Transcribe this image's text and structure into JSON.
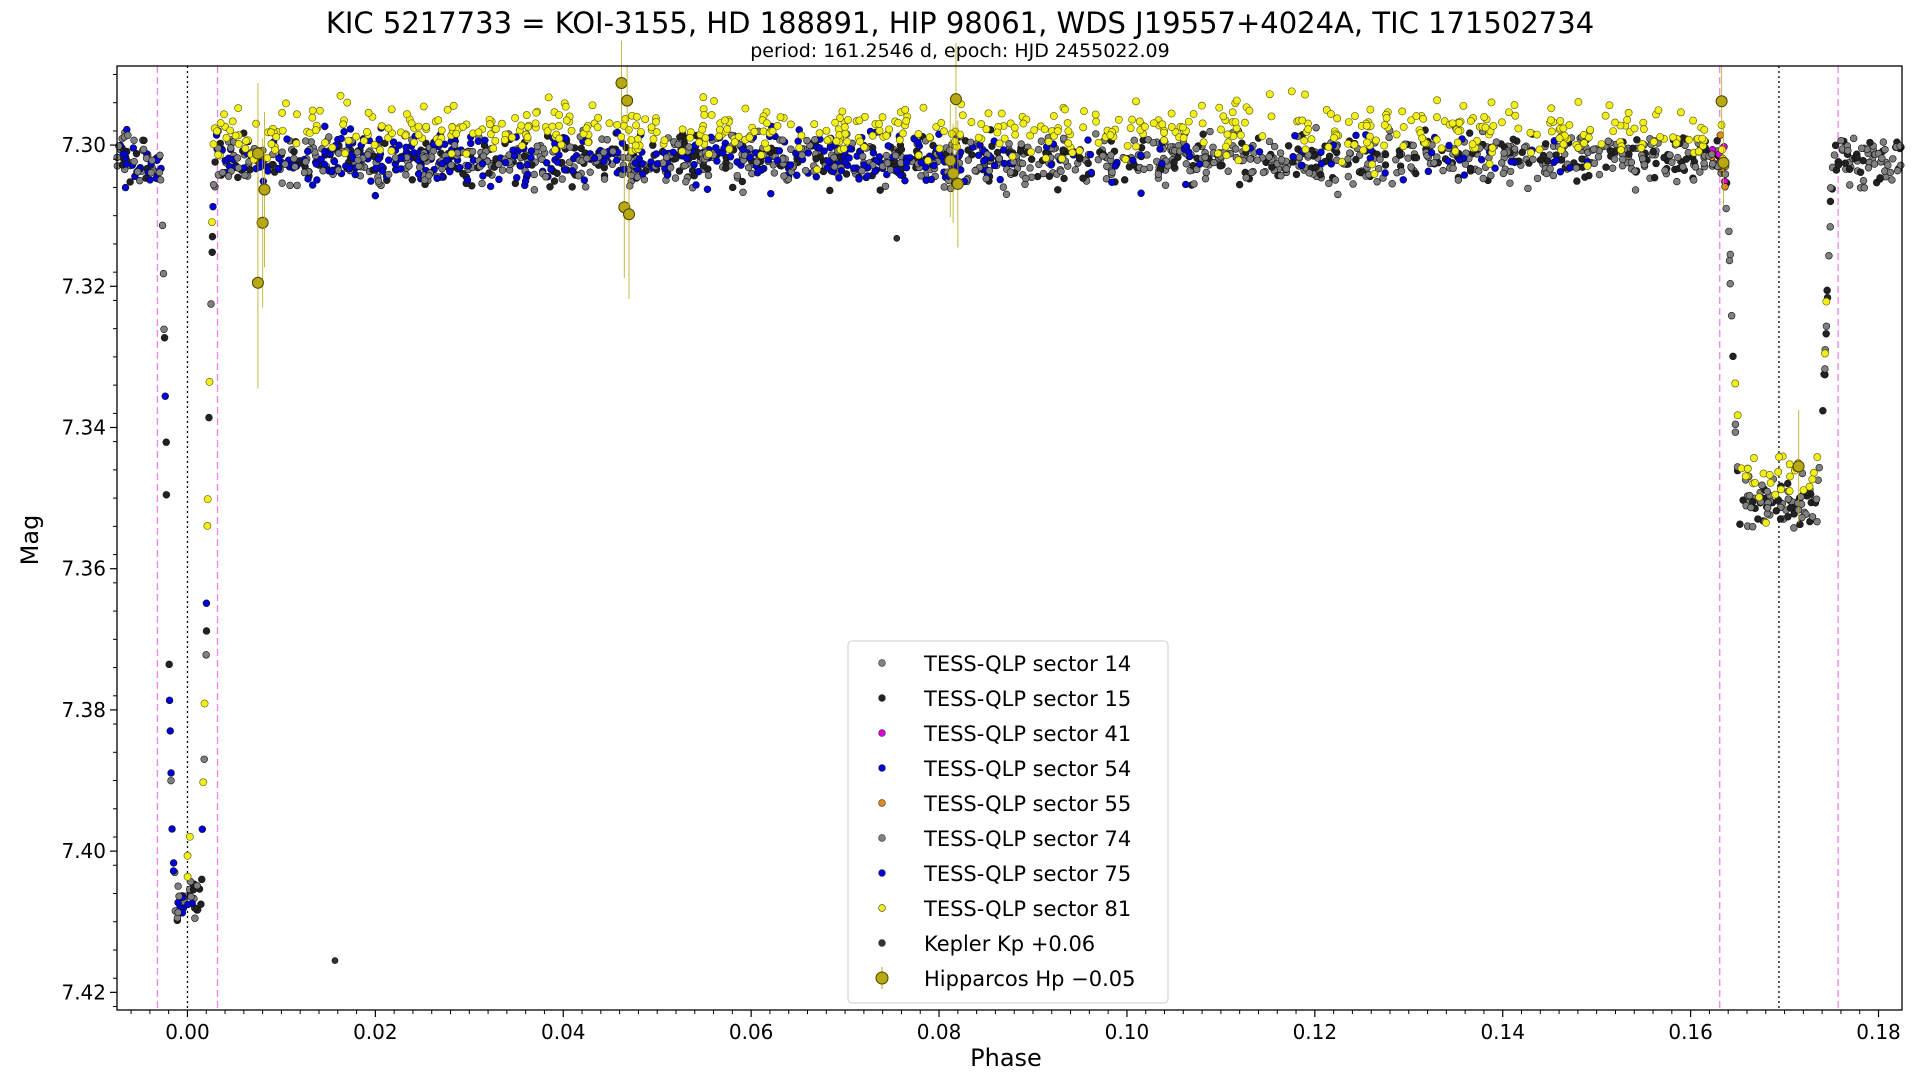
{
  "chart_data": {
    "type": "scatter",
    "title": "KIC 5217733 = KOI-3155, HD 188891, HIP 98061, WDS J19557+4024A, TIC 171502734",
    "subtitle": "period: 161.2546 d, epoch: HJD 2455022.09",
    "xlabel": "Phase",
    "ylabel": "Mag",
    "xlim": [
      -0.0075,
      0.1825
    ],
    "ylim": [
      7.4225,
      7.2888
    ],
    "y_inverted": true,
    "x_ticks": [
      0.0,
      0.02,
      0.04,
      0.06,
      0.08,
      0.1,
      0.12,
      0.14,
      0.16,
      0.18
    ],
    "x_tick_labels": [
      "0.00",
      "0.02",
      "0.04",
      "0.06",
      "0.08",
      "0.10",
      "0.12",
      "0.14",
      "0.16",
      "0.18"
    ],
    "y_ticks": [
      7.3,
      7.32,
      7.34,
      7.36,
      7.38,
      7.4,
      7.42
    ],
    "y_tick_labels": [
      "7.30",
      "7.32",
      "7.34",
      "7.36",
      "7.38",
      "7.40",
      "7.42"
    ],
    "grid": false,
    "legend_position": "bottom-center",
    "vertical_lines": [
      {
        "x": -0.0032,
        "style": "dashed",
        "color": "#ee82ee"
      },
      {
        "x": 0.0,
        "style": "dotted",
        "color": "#000000"
      },
      {
        "x": 0.0032,
        "style": "dashed",
        "color": "#ee82ee"
      },
      {
        "x": 0.1631,
        "style": "dashed",
        "color": "#ee82ee"
      },
      {
        "x": 0.1694,
        "style": "dotted",
        "color": "#000000"
      },
      {
        "x": 0.1757,
        "style": "dashed",
        "color": "#ee82ee"
      }
    ],
    "light_curve_model": {
      "baseline": 7.302,
      "eclipses": [
        {
          "center": 0.0,
          "half_width": 0.003,
          "flat_half_width": 0.0013,
          "depth": 0.105
        },
        {
          "center": 0.1694,
          "half_width": 0.006,
          "flat_half_width": 0.004,
          "depth": 0.049
        }
      ],
      "scatter": 0.0035
    },
    "series": [
      {
        "name": "TESS-QLP sector 14",
        "color": "#808080",
        "marker": "circle",
        "phase_range": [
          -0.0075,
          0.1825
        ],
        "n": 520
      },
      {
        "name": "TESS-QLP sector 15",
        "color": "#222222",
        "marker": "circle",
        "phase_range": [
          -0.0075,
          0.1825
        ],
        "n": 520
      },
      {
        "name": "TESS-QLP sector 41",
        "color": "#dd00dd",
        "marker": "circle",
        "phase_range": [
          0.1622,
          0.1638
        ],
        "n": 6
      },
      {
        "name": "TESS-QLP sector 54",
        "color": "#0000dd",
        "marker": "circle",
        "phase_range": [
          -0.0075,
          0.088
        ],
        "n": 360
      },
      {
        "name": "TESS-QLP sector 55",
        "color": "#e08a1a",
        "marker": "circle",
        "phase_range": [
          0.1622,
          0.164
        ],
        "n": 6
      },
      {
        "name": "TESS-QLP sector 74",
        "color": "#808080",
        "marker": "circle",
        "phase_range": [
          -0.0075,
          0.1825
        ],
        "n": 520
      },
      {
        "name": "TESS-QLP sector 75",
        "color": "#0000dd",
        "marker": "circle",
        "phase_range": [
          0.015,
          0.15
        ],
        "n": 160
      },
      {
        "name": "TESS-QLP sector 81",
        "color": "#f2ee1a",
        "marker": "circle",
        "phase_range": [
          0.0,
          0.175
        ],
        "n": 620
      },
      {
        "name": "Kepler Kp +0.06",
        "color": "#333333",
        "marker": "circle",
        "points": [
          [
            0.0157,
            7.4155
          ],
          [
            0.0755,
            7.3132
          ]
        ]
      },
      {
        "name": "Hipparcos Hp −0.05",
        "color": "#b8a814",
        "marker": "circle-errorbar",
        "points": [
          [
            0.0075,
            7.3012,
            0.01
          ],
          [
            0.008,
            7.311,
            0.012
          ],
          [
            0.0082,
            7.3063,
            0.011
          ],
          [
            0.0075,
            7.3195,
            0.015
          ],
          [
            0.0462,
            7.2912,
            0.006
          ],
          [
            0.0468,
            7.2937,
            0.005
          ],
          [
            0.0465,
            7.3088,
            0.01
          ],
          [
            0.047,
            7.3098,
            0.012
          ],
          [
            0.0812,
            7.3022,
            0.008
          ],
          [
            0.0815,
            7.304,
            0.007
          ],
          [
            0.082,
            7.3055,
            0.009
          ],
          [
            0.0818,
            7.2935,
            0.008
          ],
          [
            0.1633,
            7.2938,
            0.005
          ],
          [
            0.1635,
            7.3025,
            0.006
          ],
          [
            0.1715,
            7.3455,
            0.008
          ]
        ]
      }
    ]
  }
}
